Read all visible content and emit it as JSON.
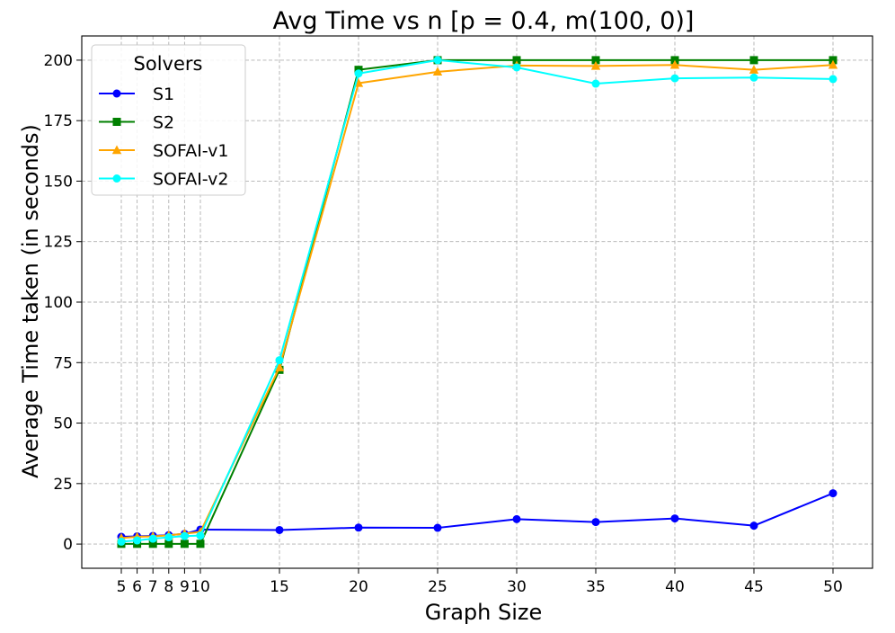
{
  "chart_data": {
    "type": "line",
    "title": "Avg Time vs n [p = 0.4, m(100, 0)]",
    "xlabel": "Graph Size",
    "ylabel": "Average Time taken (in seconds)",
    "x": [
      5,
      6,
      7,
      8,
      9,
      10,
      15,
      20,
      25,
      30,
      35,
      40,
      45,
      50
    ],
    "x_ticks": [
      5,
      6,
      7,
      8,
      9,
      10,
      15,
      20,
      25,
      30,
      35,
      40,
      45,
      50
    ],
    "x_tick_labels": [
      "5",
      "6",
      "7",
      "8",
      "9",
      "10",
      "15",
      "20",
      "25",
      "30",
      "35",
      "40",
      "45",
      "50"
    ],
    "xlim": [
      2.5,
      52.5
    ],
    "y_ticks": [
      0,
      25,
      50,
      75,
      100,
      125,
      150,
      175,
      200
    ],
    "y_tick_labels": [
      "0",
      "25",
      "50",
      "75",
      "100",
      "125",
      "150",
      "175",
      "200"
    ],
    "ylim": [
      -10,
      210
    ],
    "grid": true,
    "legend": {
      "title": "Solvers",
      "placement": "upper-left"
    },
    "series": [
      {
        "name": "S1",
        "color": "#0000ff",
        "marker": "circle",
        "values": [
          3.0,
          3.2,
          3.4,
          3.7,
          4.2,
          6.0,
          5.8,
          6.8,
          6.7,
          10.3,
          9.1,
          10.6,
          7.6,
          21.0
        ]
      },
      {
        "name": "S2",
        "color": "#008000",
        "marker": "square",
        "values": [
          0.1,
          0.1,
          0.1,
          0.1,
          0.1,
          0.1,
          72.0,
          196.0,
          200.0,
          200.0,
          200.0,
          200.0,
          200.0,
          200.0
        ]
      },
      {
        "name": "SOFAI-v1",
        "color": "#ffa500",
        "marker": "triangle",
        "values": [
          2.5,
          3.0,
          3.2,
          3.6,
          4.3,
          5.0,
          73.0,
          190.5,
          195.2,
          197.8,
          197.6,
          198.0,
          196.0,
          198.0
        ]
      },
      {
        "name": "SOFAI-v2",
        "color": "#00ffff",
        "marker": "circle",
        "values": [
          1.0,
          1.5,
          2.2,
          2.8,
          3.3,
          3.5,
          76.0,
          194.5,
          200.0,
          197.0,
          190.3,
          192.5,
          192.8,
          192.2
        ]
      }
    ]
  }
}
